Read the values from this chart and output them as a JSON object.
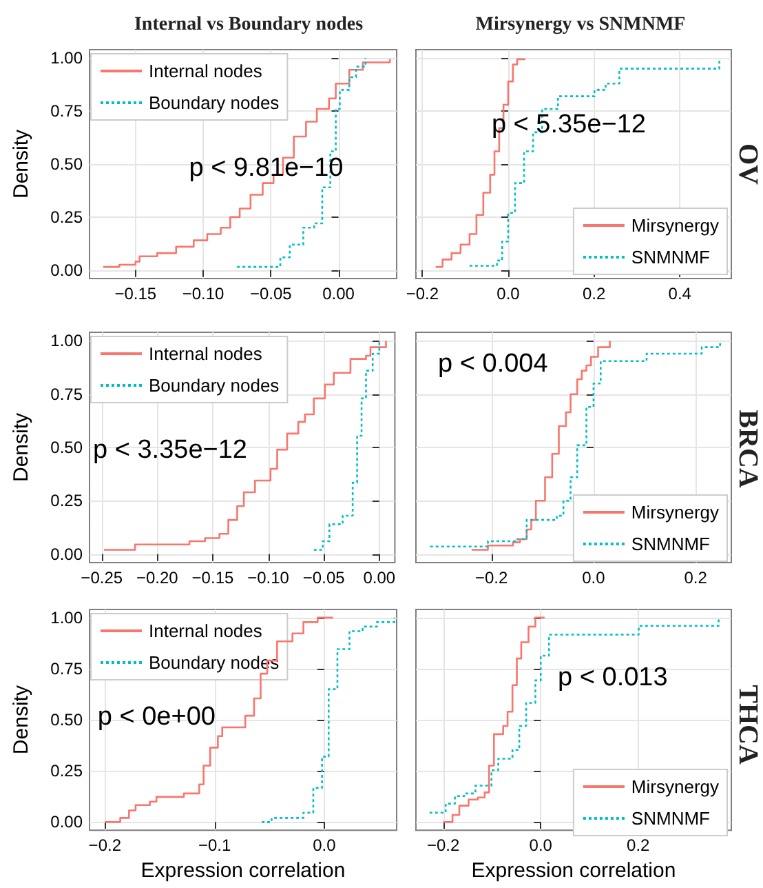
{
  "chart_data": [
    {
      "type": "step",
      "title": "Internal vs Boundary nodes",
      "ylabel": "Density",
      "annotations": [
        "p < 9.81e−10"
      ],
      "xlim": [
        -0.184,
        0.043
      ],
      "xticks": [
        {
          "value": -0.15,
          "label": "−0.15"
        },
        {
          "value": -0.1,
          "label": "−0.10"
        },
        {
          "value": -0.05,
          "label": "−0.05"
        },
        {
          "value": 0,
          "label": "0.00"
        }
      ],
      "ylim": [
        -0.04,
        1.04
      ],
      "yticks": [
        {
          "value": 0,
          "label": "0.00"
        },
        {
          "value": 0.25,
          "label": "0.25"
        },
        {
          "value": 0.5,
          "label": "0.50"
        },
        {
          "value": 0.75,
          "label": "0.75"
        },
        {
          "value": 1,
          "label": "1.00"
        }
      ],
      "grid": true,
      "legend": "top left",
      "series": [
        {
          "name": "Internal nodes",
          "color": "#f8766d",
          "line_style": "solid",
          "x": [
            -0.174,
            -0.162,
            -0.15,
            -0.147,
            -0.134,
            -0.12,
            -0.107,
            -0.097,
            -0.087,
            -0.08,
            -0.073,
            -0.065,
            -0.056,
            -0.048,
            -0.041,
            -0.033,
            -0.024,
            -0.016,
            -0.007,
            -0.002,
            0.008,
            0.018,
            0.038
          ],
          "values": [
            0.015,
            0.025,
            0.04,
            0.065,
            0.08,
            0.11,
            0.14,
            0.17,
            0.2,
            0.25,
            0.29,
            0.355,
            0.41,
            0.45,
            0.53,
            0.63,
            0.7,
            0.76,
            0.81,
            0.88,
            0.945,
            0.98,
            0.995
          ]
        },
        {
          "name": "Boundary nodes",
          "color": "#00bfc4",
          "line_style": "dotted",
          "x": [
            -0.075,
            -0.048,
            -0.043,
            -0.036,
            -0.026,
            -0.018,
            -0.012,
            -0.006,
            -0.002,
            0.001,
            0.008,
            0.013,
            0.02
          ],
          "values": [
            0.015,
            0.015,
            0.06,
            0.12,
            0.2,
            0.22,
            0.39,
            0.56,
            0.76,
            0.85,
            0.91,
            0.96,
            1.0
          ]
        }
      ]
    },
    {
      "type": "step",
      "title": "Mirsynergy vs SNMNMF",
      "y2label": "OV",
      "annotations": [
        "p < 5.35e−12"
      ],
      "xlim": [
        -0.215,
        0.52
      ],
      "xticks": [
        {
          "value": -0.2,
          "label": "−0.2"
        },
        {
          "value": 0,
          "label": "0.0"
        },
        {
          "value": 0.2,
          "label": "0.2"
        },
        {
          "value": 0.4,
          "label": "0.4"
        }
      ],
      "ylim": [
        -0.04,
        1.04
      ],
      "yticks": [
        0,
        0.25,
        0.5,
        0.75,
        1
      ],
      "tick_labels": "x",
      "grid": true,
      "legend": "bottom right",
      "series": [
        {
          "name": "Mirsynergy",
          "color": "#f8766d",
          "line_style": "solid",
          "x": [
            -0.169,
            -0.153,
            -0.132,
            -0.111,
            -0.09,
            -0.074,
            -0.058,
            -0.042,
            -0.032,
            -0.021,
            -0.011,
            0.0,
            0.011,
            0.021,
            0.04
          ],
          "values": [
            0.015,
            0.05,
            0.08,
            0.12,
            0.17,
            0.26,
            0.365,
            0.45,
            0.56,
            0.67,
            0.78,
            0.89,
            0.97,
            0.995,
            0.995
          ]
        },
        {
          "name": "SNMNMF",
          "color": "#00bfc4",
          "line_style": "dotted",
          "x": [
            -0.09,
            -0.042,
            -0.026,
            -0.014,
            0.0,
            0.016,
            0.037,
            0.058,
            0.079,
            0.116,
            0.201,
            0.227,
            0.259,
            0.481,
            0.492
          ],
          "values": [
            0.02,
            0.02,
            0.045,
            0.135,
            0.27,
            0.41,
            0.56,
            0.65,
            0.76,
            0.82,
            0.85,
            0.88,
            0.95,
            0.95,
            1.0
          ]
        }
      ]
    },
    {
      "type": "step",
      "ylabel": "Density",
      "annotations": [
        "p < 3.35e−12"
      ],
      "xlim": [
        -0.261,
        0.014
      ],
      "xticks": [
        {
          "value": -0.25,
          "label": "−0.25"
        },
        {
          "value": -0.2,
          "label": "−0.20"
        },
        {
          "value": -0.15,
          "label": "−0.15"
        },
        {
          "value": -0.1,
          "label": "−0.10"
        },
        {
          "value": -0.05,
          "label": "−0.05"
        },
        {
          "value": 0,
          "label": "0.00"
        }
      ],
      "ylim": [
        -0.04,
        1.04
      ],
      "yticks": [
        {
          "value": 0,
          "label": "0.00"
        },
        {
          "value": 0.25,
          "label": "0.25"
        },
        {
          "value": 0.5,
          "label": "0.50"
        },
        {
          "value": 0.75,
          "label": "0.75"
        },
        {
          "value": 1,
          "label": "1.00"
        }
      ],
      "grid": true,
      "legend": "top left",
      "series": [
        {
          "name": "Internal nodes",
          "color": "#f8766d",
          "line_style": "solid",
          "x": [
            -0.248,
            -0.22,
            -0.171,
            -0.157,
            -0.144,
            -0.136,
            -0.128,
            -0.122,
            -0.112,
            -0.098,
            -0.092,
            -0.083,
            -0.073,
            -0.067,
            -0.059,
            -0.049,
            -0.041,
            -0.026,
            -0.012,
            -0.008,
            0.006
          ],
          "values": [
            0.02,
            0.045,
            0.06,
            0.075,
            0.095,
            0.16,
            0.225,
            0.29,
            0.345,
            0.4,
            0.49,
            0.565,
            0.62,
            0.655,
            0.73,
            0.795,
            0.85,
            0.915,
            0.93,
            0.97,
            1.0
          ]
        },
        {
          "name": "Boundary nodes",
          "color": "#00bfc4",
          "line_style": "dotted",
          "x": [
            -0.059,
            -0.051,
            -0.045,
            -0.033,
            -0.024,
            -0.02,
            -0.016,
            -0.012,
            -0.006,
            0.0
          ],
          "values": [
            0.02,
            0.06,
            0.14,
            0.18,
            0.335,
            0.555,
            0.73,
            0.86,
            0.94,
            1.0
          ]
        }
      ]
    },
    {
      "type": "step",
      "y2label": "BRCA",
      "annotations": [
        "p < 0.004"
      ],
      "xlim": [
        -0.348,
        0.27
      ],
      "xticks": [
        {
          "value": -0.2,
          "label": "−0.2"
        },
        {
          "value": 0,
          "label": "0.0"
        },
        {
          "value": 0.2,
          "label": "0.2"
        }
      ],
      "ylim": [
        -0.04,
        1.04
      ],
      "yticks": [
        0,
        0.25,
        0.5,
        0.75,
        1
      ],
      "tick_labels": "x",
      "grid": true,
      "legend": "bottom right",
      "series": [
        {
          "name": "Mirsynergy",
          "color": "#f8766d",
          "line_style": "solid",
          "x": [
            -0.239,
            -0.207,
            -0.158,
            -0.144,
            -0.131,
            -0.122,
            -0.113,
            -0.095,
            -0.081,
            -0.068,
            -0.054,
            -0.045,
            -0.032,
            -0.023,
            -0.014,
            -0.005,
            0.009,
            0.032
          ],
          "values": [
            0.02,
            0.04,
            0.055,
            0.07,
            0.115,
            0.16,
            0.25,
            0.36,
            0.47,
            0.6,
            0.665,
            0.75,
            0.82,
            0.86,
            0.885,
            0.925,
            0.97,
            1.0
          ]
        },
        {
          "name": "SNMNMF",
          "color": "#00bfc4",
          "line_style": "dotted",
          "x": [
            -0.32,
            -0.207,
            -0.149,
            -0.131,
            -0.072,
            -0.059,
            -0.045,
            -0.032,
            -0.014,
            0.0,
            0.014,
            0.104,
            0.212,
            0.248
          ],
          "values": [
            0.035,
            0.06,
            0.07,
            0.16,
            0.18,
            0.25,
            0.36,
            0.51,
            0.69,
            0.8,
            0.905,
            0.94,
            0.97,
            1.0
          ]
        }
      ]
    },
    {
      "type": "step",
      "ylabel": "Density",
      "xlabel": "Expression correlation",
      "annotations": [
        "p < 0e+00"
      ],
      "xlim": [
        -0.214,
        0.066
      ],
      "xticks": [
        {
          "value": -0.2,
          "label": "−0.2"
        },
        {
          "value": -0.1,
          "label": "−0.1"
        },
        {
          "value": 0,
          "label": "0.0"
        }
      ],
      "ylim": [
        -0.04,
        1.04
      ],
      "yticks": [
        {
          "value": 0,
          "label": "0.00"
        },
        {
          "value": 0.25,
          "label": "0.25"
        },
        {
          "value": 0.5,
          "label": "0.50"
        },
        {
          "value": 0.75,
          "label": "0.75"
        },
        {
          "value": 1,
          "label": "1.00"
        }
      ],
      "grid": true,
      "legend": "top left",
      "series": [
        {
          "name": "Internal nodes",
          "color": "#f8766d",
          "line_style": "solid",
          "x": [
            -0.2,
            -0.186,
            -0.178,
            -0.172,
            -0.159,
            -0.153,
            -0.128,
            -0.114,
            -0.11,
            -0.104,
            -0.097,
            -0.093,
            -0.072,
            -0.064,
            -0.058,
            -0.052,
            -0.043,
            -0.029,
            -0.019,
            -0.006,
            0.008
          ],
          "values": [
            0.0,
            0.02,
            0.057,
            0.083,
            0.1,
            0.123,
            0.14,
            0.184,
            0.276,
            0.364,
            0.42,
            0.463,
            0.52,
            0.605,
            0.726,
            0.79,
            0.884,
            0.923,
            0.978,
            1.0,
            1.0
          ]
        },
        {
          "name": "Boundary nodes",
          "color": "#00bfc4",
          "line_style": "dotted",
          "x": [
            -0.057,
            -0.048,
            -0.019,
            -0.01,
            -0.002,
            0.004,
            0.012,
            0.023,
            0.035,
            0.048,
            0.064
          ],
          "values": [
            0.0,
            0.02,
            0.046,
            0.167,
            0.32,
            0.65,
            0.846,
            0.934,
            0.956,
            0.978,
            1.0
          ]
        }
      ]
    },
    {
      "type": "step",
      "xlabel": "Expression correlation",
      "y2label": "THCA",
      "annotations": [
        "p < 0.013"
      ],
      "xlim": [
        -0.256,
        0.391
      ],
      "xticks": [
        {
          "value": -0.2,
          "label": "−0.2"
        },
        {
          "value": 0,
          "label": "0.0"
        },
        {
          "value": 0.2,
          "label": "0.2"
        }
      ],
      "ylim": [
        -0.04,
        1.04
      ],
      "yticks": [
        0,
        0.25,
        0.5,
        0.75,
        1
      ],
      "tick_labels": "x",
      "grid": true,
      "legend": "bottom right",
      "series": [
        {
          "name": "Mirsynergy",
          "color": "#f8766d",
          "line_style": "solid",
          "x": [
            -0.2,
            -0.181,
            -0.167,
            -0.148,
            -0.129,
            -0.115,
            -0.106,
            -0.096,
            -0.077,
            -0.068,
            -0.058,
            -0.049,
            -0.04,
            -0.025,
            -0.011,
            0.008
          ],
          "values": [
            0.0,
            0.035,
            0.08,
            0.11,
            0.12,
            0.145,
            0.276,
            0.43,
            0.47,
            0.54,
            0.67,
            0.8,
            0.88,
            0.956,
            1.0,
            1.0
          ]
        },
        {
          "name": "SNMNMF",
          "color": "#00bfc4",
          "line_style": "dotted",
          "x": [
            -0.228,
            -0.195,
            -0.176,
            -0.157,
            -0.134,
            -0.101,
            -0.087,
            -0.058,
            -0.044,
            -0.03,
            -0.011,
            0.0,
            0.017,
            0.201,
            0.365
          ],
          "values": [
            0.046,
            0.09,
            0.127,
            0.14,
            0.178,
            0.254,
            0.31,
            0.353,
            0.47,
            0.583,
            0.693,
            0.814,
            0.917,
            0.96,
            1.0
          ]
        }
      ]
    }
  ]
}
